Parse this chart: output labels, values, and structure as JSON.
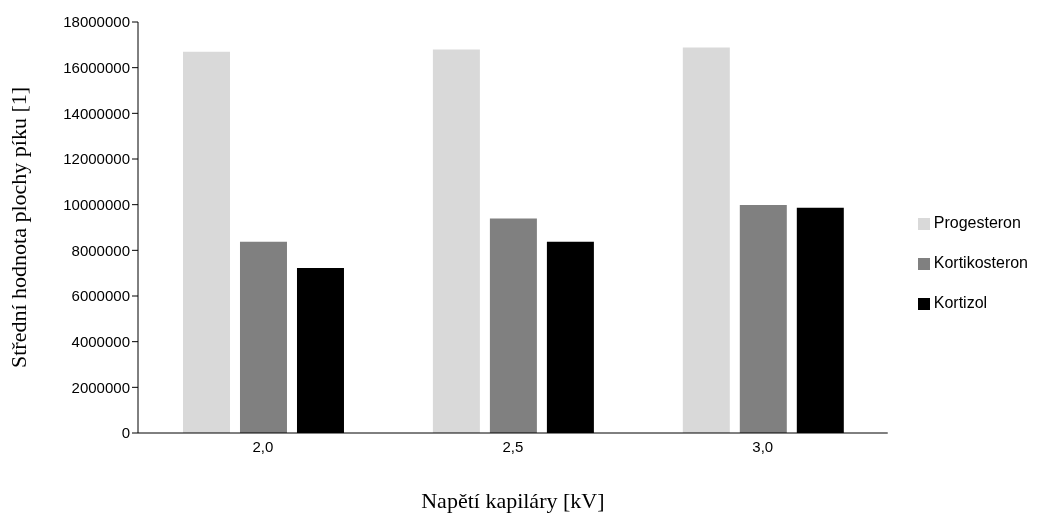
{
  "chart_data": {
    "type": "bar",
    "xlabel": "Napětí kapiláry [kV]",
    "ylabel": "Střední hodnota plochy píku [1]",
    "categories": [
      "2,0",
      "2,5",
      "3,0"
    ],
    "series": [
      {
        "name": "Progesteron",
        "color": "#d9d9d9",
        "values": [
          16700000,
          16800000,
          16880000
        ]
      },
      {
        "name": "Kortikosteron",
        "color": "#808080",
        "values": [
          8380000,
          9390000,
          9990000
        ]
      },
      {
        "name": "Kortizol",
        "color": "#000000",
        "values": [
          7230000,
          8380000,
          9870000
        ]
      }
    ],
    "ylim": [
      0,
      18000000
    ],
    "yticks": [
      0,
      2000000,
      4000000,
      6000000,
      8000000,
      10000000,
      12000000,
      14000000,
      16000000,
      18000000
    ],
    "grid": false,
    "legend": "right"
  }
}
